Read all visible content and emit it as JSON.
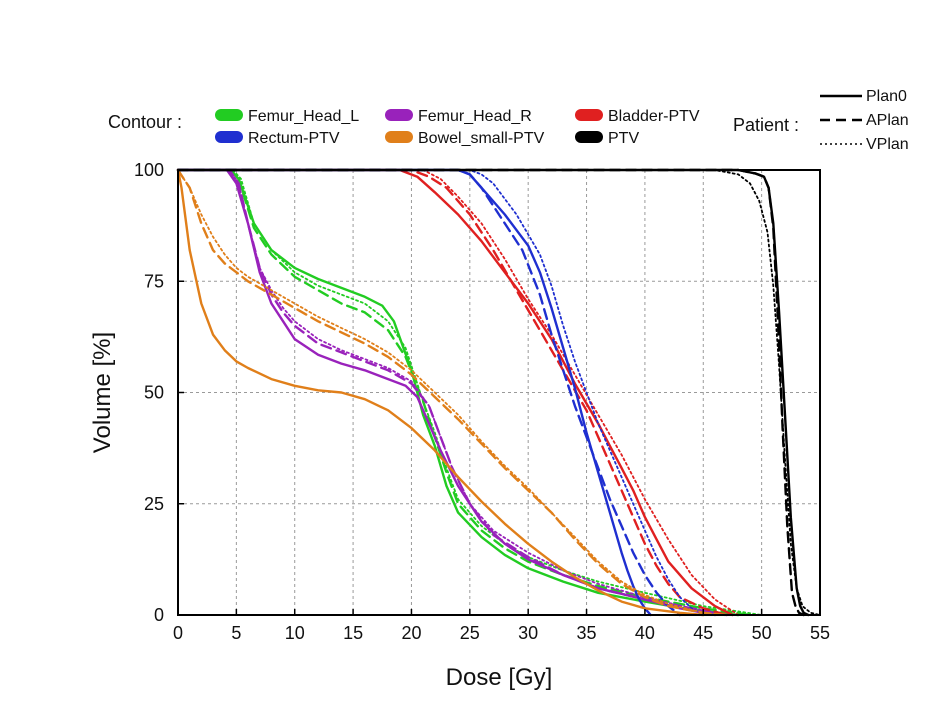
{
  "chart_data": {
    "type": "line",
    "title": "",
    "xlabel": "Dose [Gy]",
    "ylabel": "Volume [%]",
    "xlim": [
      0,
      55
    ],
    "ylim": [
      0,
      100
    ],
    "xticks": [
      0,
      5,
      10,
      15,
      20,
      25,
      30,
      35,
      40,
      45,
      50,
      55
    ],
    "yticks": [
      0,
      25,
      50,
      75,
      100
    ],
    "grid": true,
    "contour_legend": {
      "label": "Contour :",
      "items": [
        {
          "name": "Femur_Head_L",
          "color": "#22cc22"
        },
        {
          "name": "Femur_Head_R",
          "color": "#9922bb"
        },
        {
          "name": "Bladder-PTV",
          "color": "#e02020"
        },
        {
          "name": "Rectum-PTV",
          "color": "#1f2fd0"
        },
        {
          "name": "Bowel_small-PTV",
          "color": "#e07f1a"
        },
        {
          "name": "PTV",
          "color": "#000000"
        }
      ]
    },
    "patient_legend": {
      "label": "Patient :",
      "items": [
        {
          "name": "Plan0",
          "style": "solid"
        },
        {
          "name": "APlan",
          "style": "dashed"
        },
        {
          "name": "VPlan",
          "style": "dotted"
        }
      ]
    },
    "series": [
      {
        "contour": "Femur_Head_L",
        "plan": "Plan0",
        "color": "#22cc22",
        "style": "solid",
        "x": [
          0,
          4.5,
          5.2,
          6.5,
          8,
          10,
          12,
          14,
          16,
          17.5,
          18.5,
          20,
          21,
          22,
          23,
          24,
          26,
          28,
          30,
          33,
          36,
          40,
          44,
          48
        ],
        "y": [
          100,
          100,
          98,
          88,
          82,
          78,
          75.5,
          73.5,
          71.5,
          69.5,
          66,
          55,
          45,
          38,
          29,
          23,
          17.5,
          13.5,
          10.5,
          7.5,
          5,
          3,
          1.2,
          0
        ]
      },
      {
        "contour": "Femur_Head_L",
        "plan": "APlan",
        "color": "#22cc22",
        "style": "dashed",
        "x": [
          0,
          4.5,
          5.2,
          6.5,
          8,
          10,
          12,
          14,
          16,
          18,
          19.5,
          21,
          22,
          23,
          24,
          26,
          28,
          30,
          33,
          36,
          40,
          45,
          49
        ],
        "y": [
          100,
          100,
          98,
          87,
          81,
          76,
          73,
          70,
          68,
          64,
          58,
          48,
          40,
          32,
          25,
          19,
          15,
          12,
          9,
          6.5,
          4,
          1.5,
          0
        ]
      },
      {
        "contour": "Femur_Head_L",
        "plan": "VPlan",
        "color": "#22cc22",
        "style": "dotted",
        "x": [
          0,
          4.7,
          5.4,
          6.5,
          8,
          10,
          12,
          14,
          16,
          18,
          19.5,
          21,
          22,
          23,
          24,
          26,
          28,
          30,
          33,
          36,
          40,
          45,
          50
        ],
        "y": [
          100,
          100,
          98,
          88,
          82,
          77,
          74,
          72,
          70,
          66,
          60,
          48,
          41,
          33,
          26,
          20,
          16,
          13,
          10,
          7.5,
          5,
          2,
          0
        ]
      },
      {
        "contour": "Femur_Head_R",
        "plan": "Plan0",
        "color": "#9922bb",
        "style": "solid",
        "x": [
          0,
          4.2,
          5,
          6,
          7,
          8,
          9,
          10,
          12,
          14,
          16,
          18,
          19.5,
          20.5,
          21.5,
          22.5,
          24,
          26,
          28,
          30,
          33,
          36,
          40,
          43,
          46
        ],
        "y": [
          100,
          100,
          97,
          88,
          77,
          70,
          66,
          62,
          58.5,
          56.5,
          55,
          53,
          51.5,
          49,
          43,
          37,
          29,
          21,
          16,
          12.5,
          9,
          6,
          3.5,
          1.5,
          0
        ]
      },
      {
        "contour": "Femur_Head_R",
        "plan": "APlan",
        "color": "#9922bb",
        "style": "dashed",
        "x": [
          0,
          4.4,
          5.2,
          6,
          7,
          8,
          9,
          10,
          12,
          14,
          16,
          18,
          20,
          21.5,
          22.5,
          23.5,
          25,
          27,
          30,
          33,
          36,
          40,
          44,
          47
        ],
        "y": [
          100,
          100,
          97,
          88,
          78,
          72,
          68,
          65,
          61,
          59,
          57,
          55,
          52,
          47,
          40,
          33,
          25,
          18,
          13,
          9,
          6,
          3.5,
          1.5,
          0
        ]
      },
      {
        "contour": "Femur_Head_R",
        "plan": "VPlan",
        "color": "#9922bb",
        "style": "dotted",
        "x": [
          0,
          4.4,
          5.2,
          6,
          7,
          8,
          9,
          10,
          12,
          14,
          16,
          18,
          20,
          21.5,
          22.5,
          23.5,
          25,
          27,
          30,
          33,
          36,
          40,
          44,
          47
        ],
        "y": [
          100,
          100,
          97,
          88,
          78,
          73,
          69,
          66,
          62,
          59.5,
          57.5,
          55.5,
          52.5,
          47,
          40,
          33,
          25,
          19,
          14,
          10,
          7,
          4,
          1.5,
          0
        ]
      },
      {
        "contour": "Bladder-PTV",
        "plan": "Plan0",
        "color": "#e02020",
        "style": "solid",
        "x": [
          0,
          19,
          20.5,
          22,
          24,
          26,
          28,
          30,
          32,
          34,
          36,
          37,
          38,
          39,
          40,
          41,
          42,
          44,
          46,
          47.5
        ],
        "y": [
          100,
          100,
          98.5,
          95,
          90,
          84,
          77,
          70,
          62,
          52,
          43,
          38,
          33,
          28,
          22,
          17,
          12,
          6,
          2,
          0
        ]
      },
      {
        "contour": "Bladder-PTV",
        "plan": "APlan",
        "color": "#e02020",
        "style": "dashed",
        "x": [
          0,
          20,
          21.5,
          23,
          25,
          27,
          29,
          31,
          33,
          35,
          36,
          37,
          38,
          39,
          40,
          41,
          42,
          43,
          45,
          47
        ],
        "y": [
          100,
          100,
          98.5,
          96,
          90,
          82,
          73,
          64,
          55,
          46,
          40,
          34,
          28,
          22,
          16,
          11,
          7,
          4,
          1.5,
          0
        ]
      },
      {
        "contour": "Bladder-PTV",
        "plan": "VPlan",
        "color": "#e02020",
        "style": "dotted",
        "x": [
          0,
          21,
          22.5,
          24,
          26,
          28,
          30,
          32,
          34,
          36,
          38,
          40,
          42,
          44,
          46,
          48
        ],
        "y": [
          100,
          100,
          98,
          94,
          88,
          80,
          71,
          63,
          54,
          45,
          36,
          26,
          17,
          9,
          3.5,
          0
        ]
      },
      {
        "contour": "Rectum-PTV",
        "plan": "Plan0",
        "color": "#1f2fd0",
        "style": "solid",
        "x": [
          0,
          24,
          25,
          26,
          28,
          30,
          31,
          32,
          33,
          34,
          35,
          36,
          37,
          38,
          38.5,
          39,
          39.5,
          40,
          40.5
        ],
        "y": [
          100,
          100,
          99,
          96,
          90,
          83,
          77,
          69,
          60,
          51,
          41,
          32,
          23,
          14,
          10,
          6.5,
          3.5,
          1.5,
          0
        ]
      },
      {
        "contour": "Rectum-PTV",
        "plan": "APlan",
        "color": "#1f2fd0",
        "style": "dashed",
        "x": [
          0,
          24,
          25,
          26,
          28,
          29.5,
          31,
          32,
          33,
          34,
          35,
          36,
          37,
          38,
          39,
          40,
          41,
          42,
          43
        ],
        "y": [
          100,
          100,
          99,
          96,
          88,
          82,
          72,
          63,
          55,
          47,
          40,
          33,
          26,
          20,
          14,
          9,
          5,
          2,
          0
        ]
      },
      {
        "contour": "Rectum-PTV",
        "plan": "VPlan",
        "color": "#1f2fd0",
        "style": "dotted",
        "x": [
          0,
          25,
          26,
          27,
          29,
          31,
          32,
          33,
          34,
          35,
          36,
          37,
          38,
          39,
          40,
          41,
          42,
          43,
          44,
          45
        ],
        "y": [
          100,
          100,
          99,
          97,
          90,
          81,
          74,
          65,
          57,
          50,
          43,
          37,
          31,
          25,
          19,
          13,
          8,
          4,
          1.5,
          0
        ]
      },
      {
        "contour": "Bowel_small-PTV",
        "plan": "Plan0",
        "color": "#e07f1a",
        "style": "solid",
        "x": [
          0,
          0.3,
          1,
          2,
          3,
          4,
          5,
          6,
          8,
          10,
          12,
          14,
          16,
          18,
          20,
          22,
          24,
          26,
          28,
          30,
          32,
          34,
          36,
          38,
          40,
          43,
          45
        ],
        "y": [
          100,
          96,
          82,
          70,
          63,
          59.5,
          57,
          55.5,
          53,
          51.5,
          50.5,
          50,
          48.5,
          46,
          42,
          37,
          31,
          25.5,
          20.5,
          16,
          12,
          8.5,
          5.5,
          3,
          1.5,
          0.5,
          0
        ]
      },
      {
        "contour": "Bowel_small-PTV",
        "plan": "APlan",
        "color": "#e07f1a",
        "style": "dashed",
        "x": [
          0,
          0.5,
          1,
          2,
          3,
          4,
          5,
          6,
          8,
          10,
          12,
          14,
          16,
          18,
          20,
          22,
          24,
          26,
          28,
          30,
          32,
          34,
          36,
          38,
          40,
          42,
          45,
          47
        ],
        "y": [
          100,
          98,
          96,
          88,
          82,
          79,
          77,
          75,
          72,
          69,
          66,
          63.5,
          61,
          58,
          54,
          49,
          44,
          38.5,
          33,
          28,
          23,
          17,
          11.5,
          7,
          4,
          2,
          0.5,
          0
        ]
      },
      {
        "contour": "Bowel_small-PTV",
        "plan": "VPlan",
        "color": "#e07f1a",
        "style": "dotted",
        "x": [
          0,
          0.5,
          1,
          2,
          3,
          4,
          5,
          6,
          8,
          10,
          12,
          14,
          16,
          18,
          20,
          22,
          24,
          26,
          28,
          30,
          32,
          34,
          36,
          38,
          40,
          42,
          45,
          47
        ],
        "y": [
          100,
          98,
          96,
          90,
          85,
          81,
          78,
          76,
          73,
          70,
          67,
          64.5,
          62,
          59,
          55,
          50,
          45,
          39,
          33.5,
          28.5,
          23,
          17.5,
          12,
          7.5,
          4.5,
          2.5,
          0.5,
          0
        ]
      },
      {
        "contour": "PTV",
        "plan": "Plan0",
        "color": "#000000",
        "style": "solid",
        "x": [
          0,
          48,
          49.5,
          50.2,
          50.6,
          51,
          51.5,
          52,
          52.5,
          53,
          53.3,
          53.6,
          54
        ],
        "y": [
          100,
          100,
          99.2,
          98.5,
          96,
          88,
          68,
          45,
          22,
          6,
          2,
          0.5,
          0
        ]
      },
      {
        "contour": "PTV",
        "plan": "APlan",
        "color": "#000000",
        "style": "dashed",
        "x": [
          0,
          48,
          49.5,
          50.2,
          50.6,
          51,
          51.4,
          51.8,
          52.2,
          52.6,
          52.9,
          53.2,
          53.6
        ],
        "y": [
          100,
          100,
          99.2,
          98.5,
          96,
          87,
          66,
          42,
          20,
          5,
          2,
          0.5,
          0
        ]
      },
      {
        "contour": "PTV",
        "plan": "VPlan",
        "color": "#000000",
        "style": "dotted",
        "x": [
          0,
          46,
          48,
          49,
          49.8,
          50.5,
          51,
          51.5,
          52,
          52.5,
          53,
          53.5,
          54.2,
          55
        ],
        "y": [
          100,
          100,
          99,
          97,
          93,
          86,
          74,
          56,
          35,
          16,
          6,
          2,
          0.5,
          0
        ]
      }
    ]
  }
}
